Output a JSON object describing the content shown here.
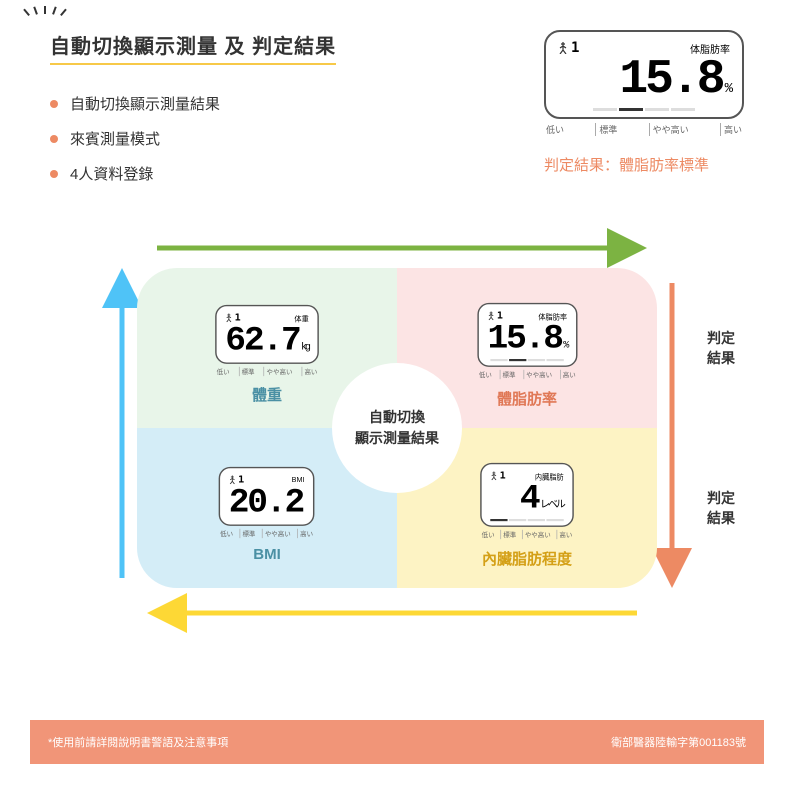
{
  "title": "自動切換顯示測量 及 判定結果",
  "bullets": [
    "自動切換顯示測量結果",
    "來賓測量模式",
    "4人資料登錄"
  ],
  "topDisplay": {
    "header": "体脂肪率",
    "user": "1",
    "value": "15.8",
    "unit": "%",
    "scale": [
      "低い",
      "標準",
      "やや高い",
      "高い"
    ],
    "activeIdx": 1
  },
  "resultText": "判定結果：體脂肪率標準",
  "centerText": "自動切換\n顯示測量結果",
  "sideLabel": "判定\n結果",
  "quads": [
    {
      "bg": "q1",
      "header": "体重",
      "value": "62.7",
      "unit": "kg",
      "label": "體重",
      "hasBar": false
    },
    {
      "bg": "q2",
      "header": "体脂肪率",
      "value": "15.8",
      "unit": "%",
      "label": "體脂肪率",
      "hasBar": true,
      "activeIdx": 1
    },
    {
      "bg": "q3",
      "header": "BMI",
      "value": "20.2",
      "unit": "",
      "label": "BMI",
      "hasBar": false
    },
    {
      "bg": "q4",
      "header": "内臓脂肪",
      "value": "4",
      "unit": "レベル",
      "label": "內臟脂肪程度",
      "hasBar": true,
      "activeIdx": 0
    }
  ],
  "scaleLabels": [
    "低い",
    "標準",
    "やや高い",
    "高い"
  ],
  "footer": {
    "left": "*使用前請詳閱說明書警語及注意事項",
    "right": "衛部醫器陸輸字第001183號"
  },
  "colors": {
    "accent": "#ed8a63",
    "yellow": "#f7c948",
    "arrowGreen": "#7cb342",
    "arrowPink": "#f48fb1",
    "arrowBlue": "#4fc3f7",
    "arrowYellow": "#fdd835"
  }
}
